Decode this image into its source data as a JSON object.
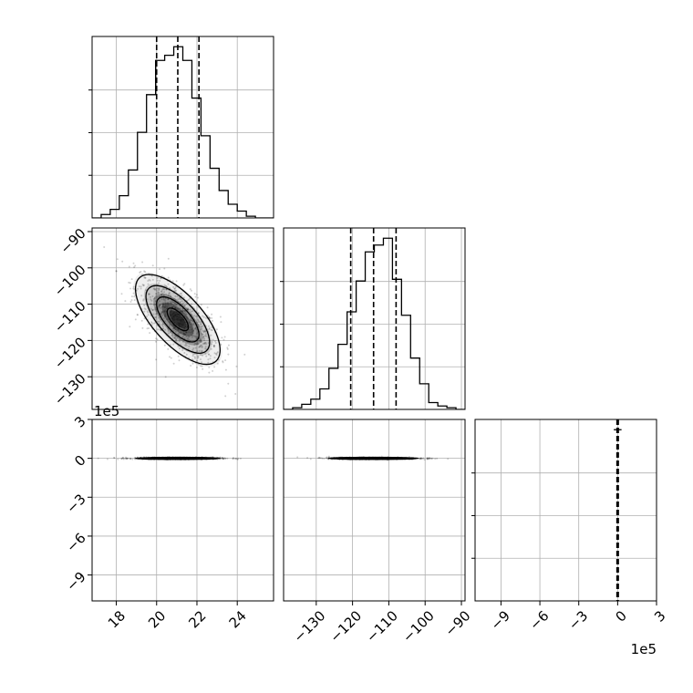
{
  "chart_data": {
    "type": "corner",
    "title": "",
    "grid": true,
    "parameters": [
      {
        "index": 0,
        "range": [
          16.8,
          25.8
        ],
        "ticks": [
          18,
          20,
          22,
          24
        ],
        "tick_labels": [
          "18",
          "20",
          "22",
          "24"
        ]
      },
      {
        "index": 1,
        "range": [
          -139,
          -89
        ],
        "ticks": [
          -130,
          -120,
          -110,
          -100,
          -90
        ],
        "tick_labels": [
          "−130",
          "−120",
          "−110",
          "−100",
          "−90"
        ]
      },
      {
        "index": 2,
        "range": [
          -1100000,
          300000
        ],
        "offset_label": "1e5",
        "ticks": [
          -900000,
          -600000,
          -300000,
          0,
          300000
        ],
        "tick_labels": [
          "−9",
          "−6",
          "−3",
          "0",
          "3"
        ]
      }
    ],
    "histograms": [
      {
        "param": 0,
        "quantiles": [
          20.0,
          21.05,
          22.1
        ],
        "bin_edges": [
          16.8,
          17.25,
          17.7,
          18.15,
          18.6,
          19.05,
          19.5,
          19.95,
          20.4,
          20.85,
          21.3,
          21.75,
          22.2,
          22.65,
          23.1,
          23.55,
          24.0,
          24.45,
          24.9,
          25.35,
          25.8
        ],
        "counts": [
          0,
          2,
          5,
          13,
          28,
          50,
          72,
          92,
          95,
          100,
          92,
          70,
          48,
          29,
          16,
          8,
          4,
          1,
          0,
          0
        ]
      },
      {
        "param": 1,
        "quantiles": [
          -120.5,
          -114.2,
          -108.0
        ],
        "bin_edges": [
          -139.0,
          -136.5,
          -134.0,
          -131.5,
          -129.0,
          -126.5,
          -124.0,
          -121.5,
          -119.0,
          -116.5,
          -114.0,
          -111.5,
          -109.0,
          -106.5,
          -104.0,
          -101.5,
          -99.0,
          -96.5,
          -94.0,
          -91.5,
          -89.0
        ],
        "counts": [
          0,
          1,
          3,
          6,
          12,
          24,
          38,
          57,
          75,
          92,
          96,
          100,
          76,
          55,
          30,
          15,
          4,
          2,
          1,
          0
        ]
      },
      {
        "param": 2,
        "quantiles": [
          -5000,
          0,
          5000
        ],
        "bin_edges": [
          -30000,
          0,
          30000
        ],
        "counts": [
          100,
          100
        ]
      }
    ],
    "scatter_2d": [
      {
        "x_param": 0,
        "y_param": 1,
        "mean": [
          21.05,
          -114.2
        ],
        "sd": [
          1.05,
          6.2
        ],
        "rho": -0.68,
        "contour_levels": [
          0.118,
          0.393,
          0.675,
          0.864
        ]
      },
      {
        "x_param": 0,
        "y_param": 2,
        "mean": [
          21.05,
          0
        ],
        "sd": [
          1.05,
          4000
        ],
        "rho": 0.0,
        "contour_levels": [
          0.118,
          0.393,
          0.675,
          0.864
        ]
      },
      {
        "x_param": 1,
        "y_param": 2,
        "mean": [
          -114.2,
          0
        ],
        "sd": [
          6.2,
          4000
        ],
        "rho": 0.0,
        "contour_levels": [
          0.118,
          0.393,
          0.675,
          0.864
        ]
      }
    ]
  }
}
